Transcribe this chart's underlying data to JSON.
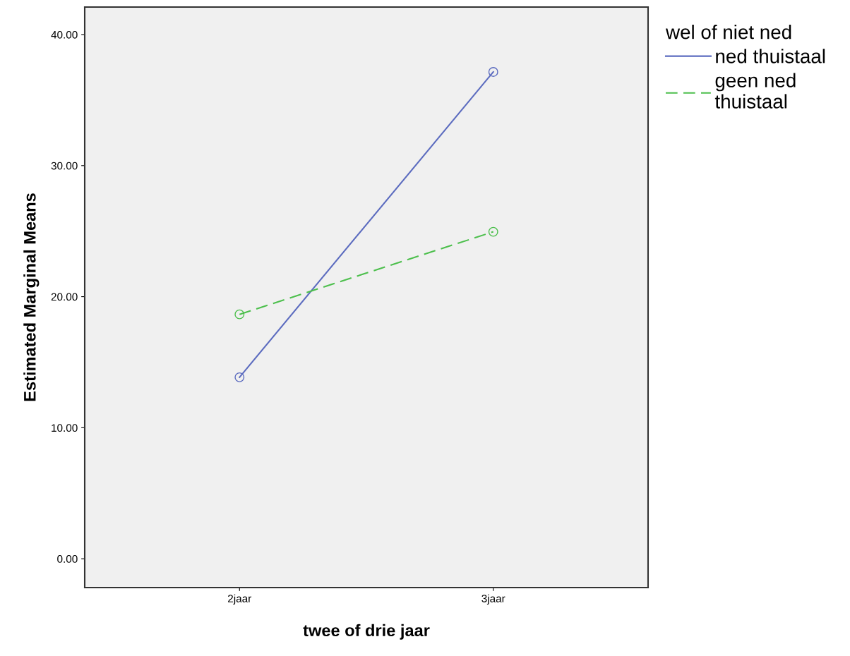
{
  "chart_data": {
    "type": "line",
    "xlabel": "twee of drie jaar",
    "ylabel": "Estimated Marginal Means",
    "legend_title": "wel of niet ned",
    "categories": [
      "2jaar",
      "3jaar"
    ],
    "series": [
      {
        "name": "ned thuistaal",
        "color": "#5b6bbf",
        "values": [
          13.85,
          37.15
        ],
        "line_style": "solid"
      },
      {
        "name": "geen ned\nthuistaal",
        "color": "#4cbf4c",
        "values": [
          18.65,
          24.95
        ],
        "line_style": "dashed"
      }
    ],
    "ylim": [
      -2.2,
      42.1
    ],
    "yticks": [
      {
        "value": 0,
        "label": "0.00"
      },
      {
        "value": 10,
        "label": "10.00"
      },
      {
        "value": 20,
        "label": "20.00"
      },
      {
        "value": 30,
        "label": "30.00"
      },
      {
        "value": 40,
        "label": "40.00"
      }
    ],
    "marker": "circle",
    "grid": false,
    "legend": "right"
  }
}
